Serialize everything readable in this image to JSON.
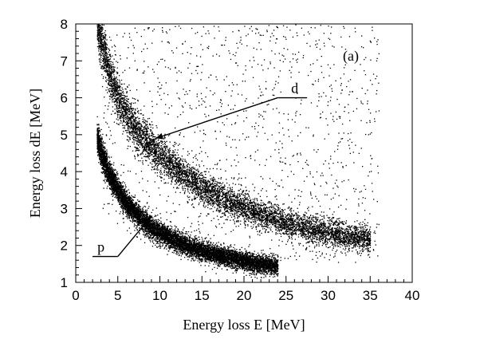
{
  "chart_data": {
    "type": "scatter",
    "title": "",
    "xlabel": "Energy loss E  [MeV]",
    "ylabel": "Energy loss dE  [MeV]",
    "xlim": [
      0,
      40
    ],
    "ylim": [
      1,
      8
    ],
    "xticks": [
      "0",
      "5",
      "10",
      "15",
      "20",
      "25",
      "30",
      "35",
      "40"
    ],
    "yticks": [
      "1",
      "2",
      "3",
      "4",
      "5",
      "6",
      "7",
      "8"
    ],
    "grid": false,
    "legend": "none",
    "panel_label": "(a)",
    "series": [
      {
        "name": "p",
        "ridge": [
          [
            3,
            4.5
          ],
          [
            4,
            3.9
          ],
          [
            5,
            3.5
          ],
          [
            6,
            3.15
          ],
          [
            7,
            2.9
          ],
          [
            8,
            2.68
          ],
          [
            9,
            2.5
          ],
          [
            10,
            2.35
          ],
          [
            12,
            2.12
          ],
          [
            14,
            1.93
          ],
          [
            16,
            1.8
          ],
          [
            18,
            1.68
          ],
          [
            20,
            1.58
          ],
          [
            22,
            1.5
          ],
          [
            24,
            1.45
          ]
        ],
        "x_range": [
          2.5,
          24
        ],
        "band_width": 0.45,
        "point_count": 9000
      },
      {
        "name": "d",
        "ridge": [
          [
            3,
            7.6
          ],
          [
            4,
            6.6
          ],
          [
            5,
            6.0
          ],
          [
            6,
            5.55
          ],
          [
            7,
            5.2
          ],
          [
            8,
            4.9
          ],
          [
            10,
            4.45
          ],
          [
            12,
            4.05
          ],
          [
            14,
            3.72
          ],
          [
            16,
            3.45
          ],
          [
            18,
            3.22
          ],
          [
            20,
            3.02
          ],
          [
            22,
            2.85
          ],
          [
            24,
            2.7
          ],
          [
            26,
            2.55
          ],
          [
            28,
            2.45
          ],
          [
            30,
            2.35
          ],
          [
            32,
            2.26
          ],
          [
            34,
            2.2
          ]
        ],
        "x_range": [
          2.5,
          35
        ],
        "band_width": 0.6,
        "point_count": 7000
      },
      {
        "name": "background",
        "x_range": [
          3,
          36
        ],
        "y_range": [
          1.2,
          8
        ],
        "point_count": 1400
      }
    ],
    "annotations": [
      {
        "text": "d",
        "line": [
          [
            27.5,
            6.0
          ],
          [
            24,
            6.0
          ]
        ],
        "arrow_to": [
          9.5,
          4.9
        ]
      },
      {
        "text": "p",
        "line": [
          [
            2,
            1.7
          ],
          [
            5,
            1.7
          ]
        ],
        "arrow_to": [
          9,
          2.8
        ]
      }
    ]
  }
}
